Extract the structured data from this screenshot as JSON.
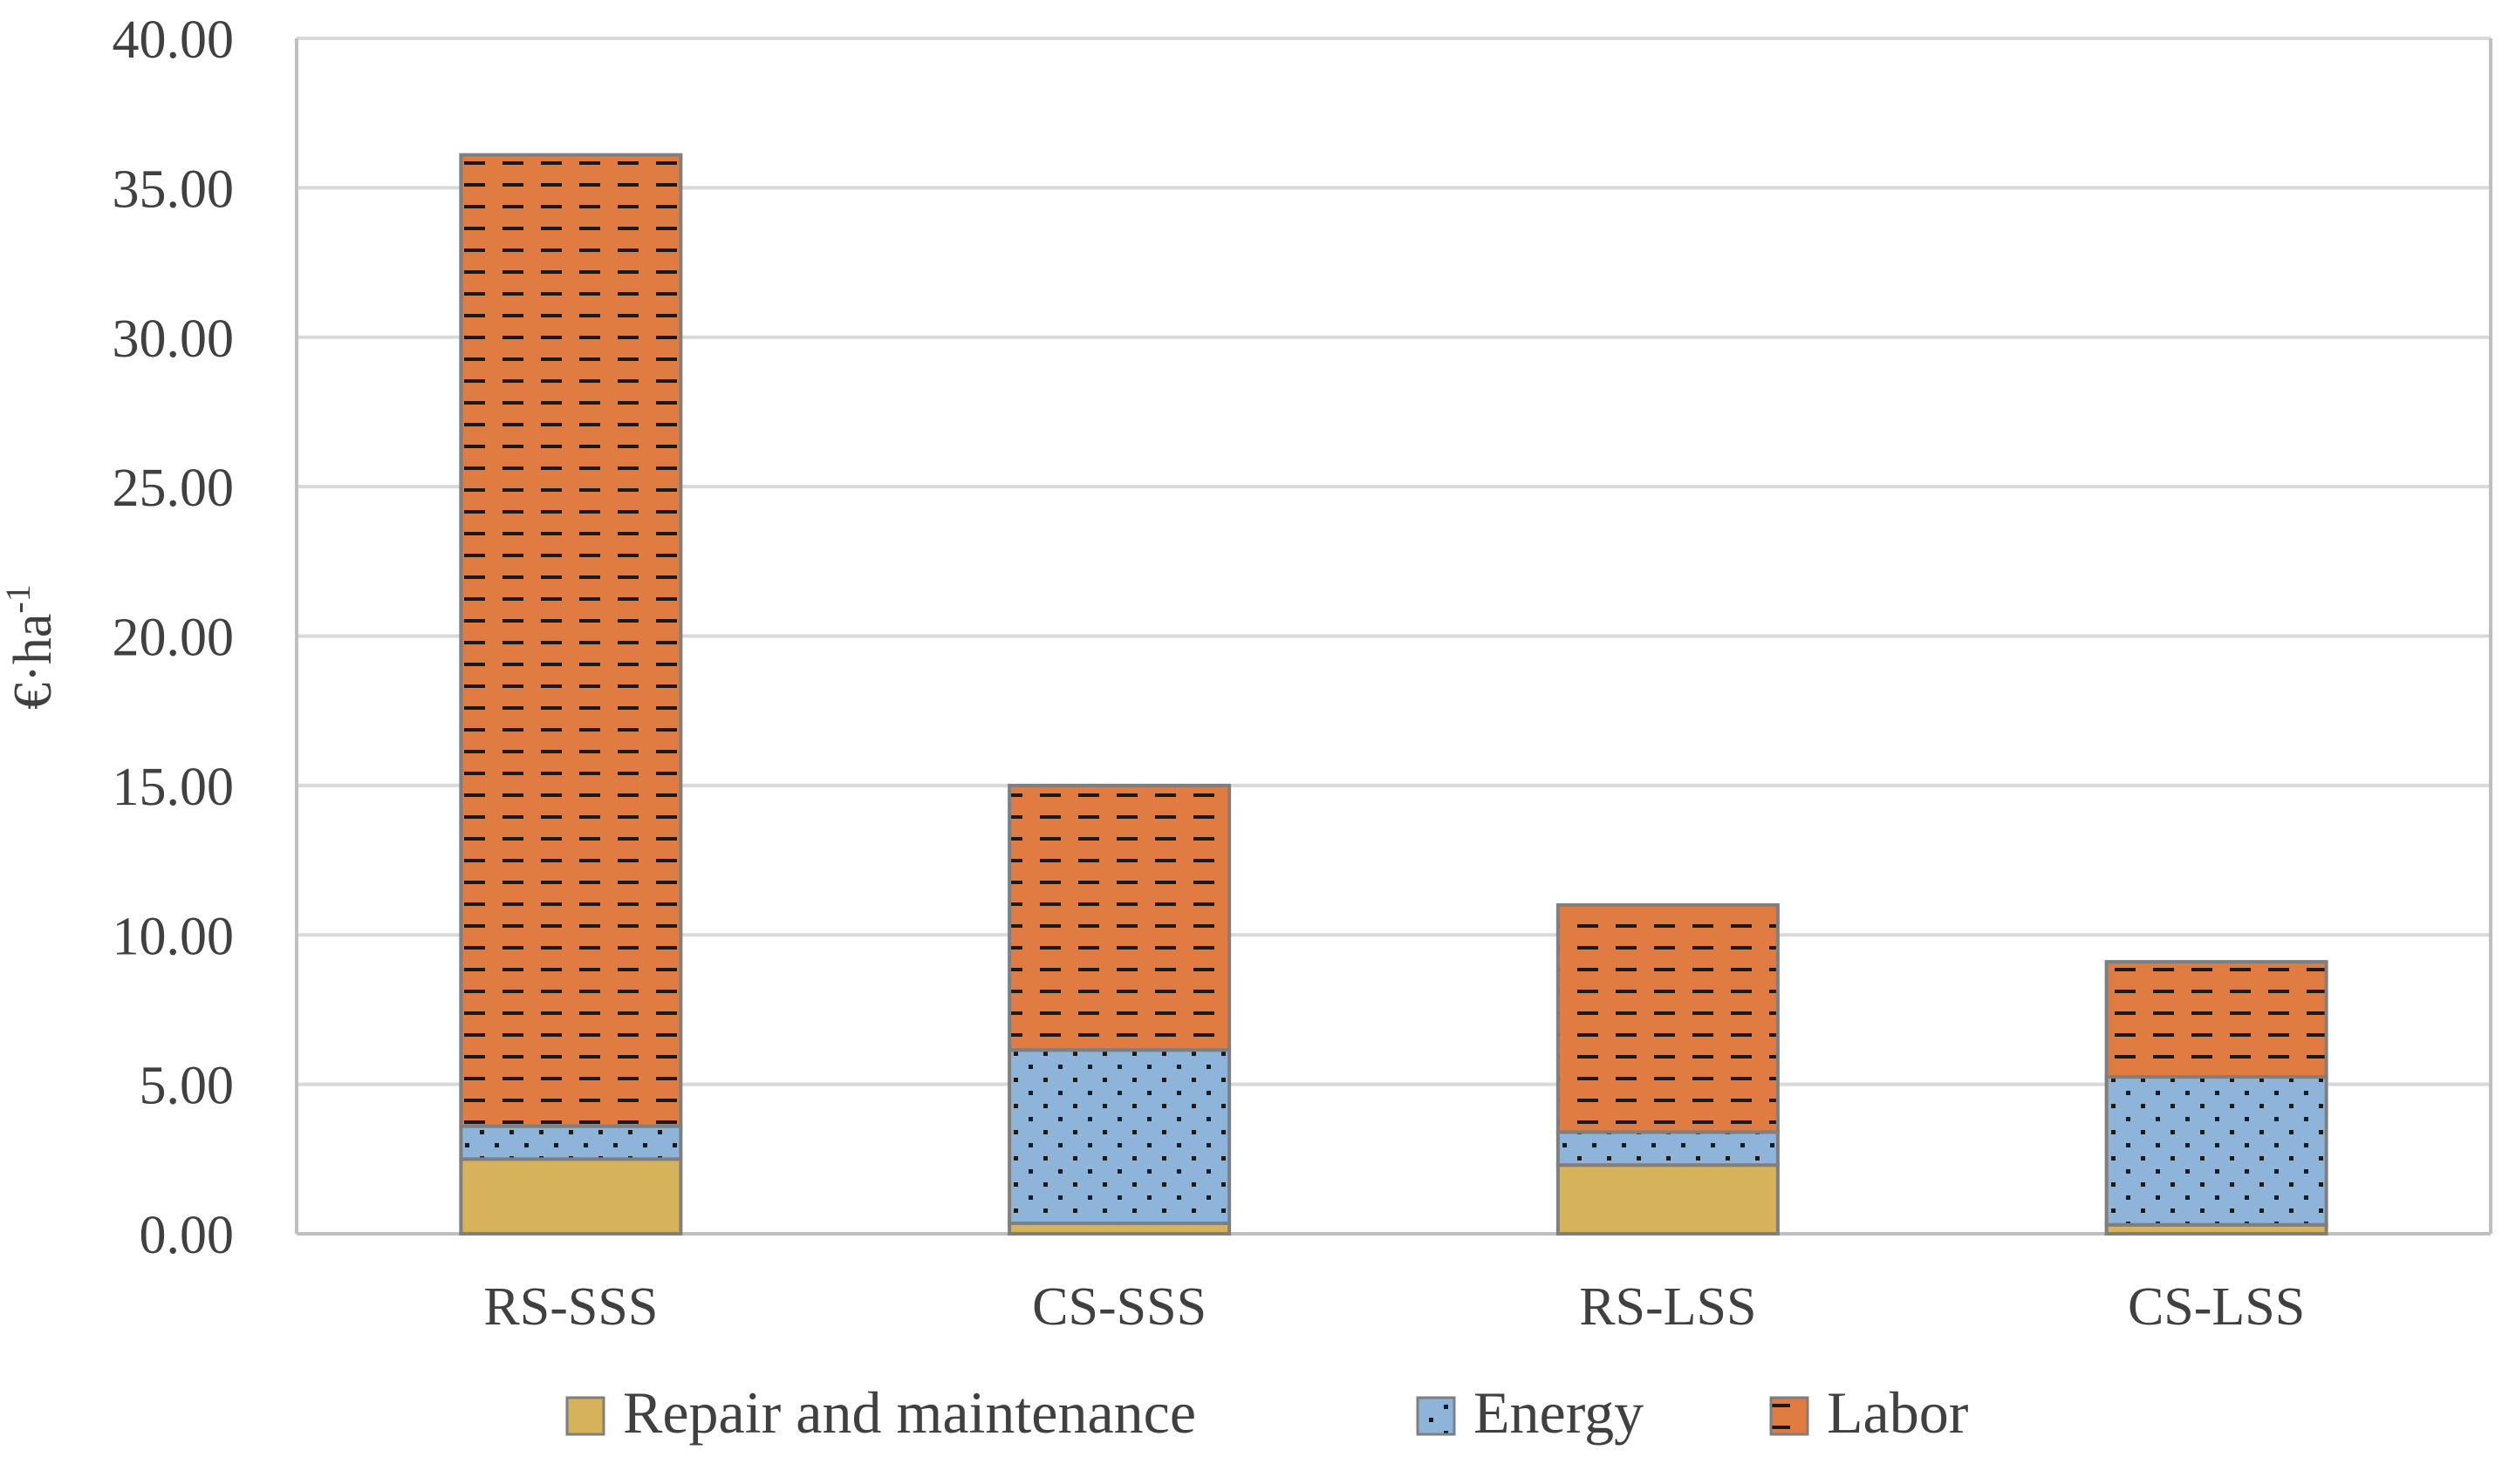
{
  "chart_data": {
    "type": "bar",
    "stacked": true,
    "title": "",
    "xlabel": "",
    "ylabel": "€·ha",
    "ylabel_superscript": "-1",
    "ylim": [
      0,
      40
    ],
    "ytick_values": [
      0,
      5,
      10,
      15,
      20,
      25,
      30,
      35,
      40
    ],
    "ytick_labels": [
      "0.00",
      "5.00",
      "10.00",
      "15.00",
      "20.00",
      "25.00",
      "30.00",
      "35.00",
      "40.00"
    ],
    "grid": true,
    "legend_position": "bottom",
    "categories": [
      "RS-SSS",
      "CS-SSS",
      "RS-LSS",
      "CS-LSS"
    ],
    "series": [
      {
        "name": "Repair and maintenance",
        "color": "#d6b35b",
        "pattern": "solid",
        "values": [
          2.5,
          0.35,
          2.3,
          0.3
        ]
      },
      {
        "name": "Energy",
        "color": "#8fb4d9",
        "pattern": "dots",
        "values": [
          1.1,
          5.8,
          1.1,
          4.95
        ]
      },
      {
        "name": "Labor",
        "color": "#e07b42",
        "pattern": "dashes",
        "values": [
          32.5,
          8.85,
          7.6,
          3.85
        ]
      }
    ],
    "colors": {
      "grid": "#d9d9d9",
      "axis": "#bfbfbf",
      "bar_border": "#7f7f7f",
      "text": "#404040"
    }
  }
}
